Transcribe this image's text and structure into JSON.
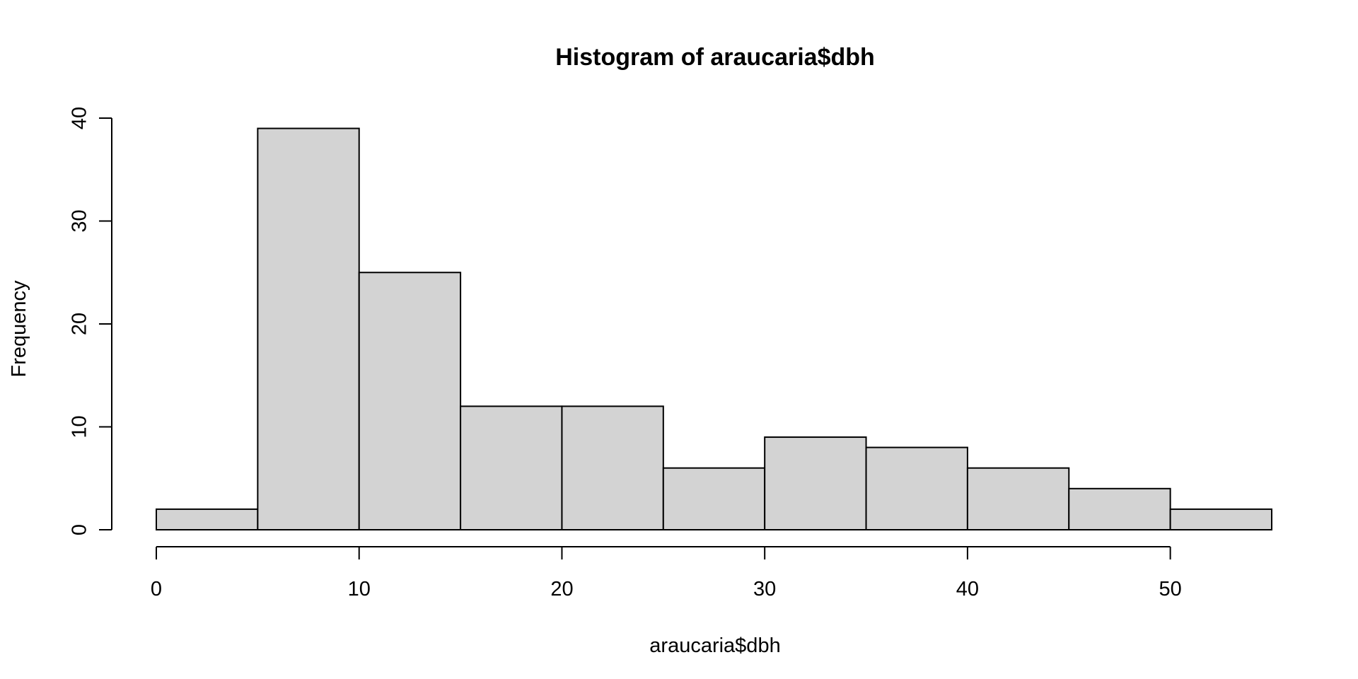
{
  "chart_data": {
    "type": "bar",
    "subtype": "histogram",
    "title": "Histogram of araucaria$dbh",
    "xlabel": "araucaria$dbh",
    "ylabel": "Frequency",
    "bins": [
      {
        "x0": 0,
        "x1": 5,
        "count": 2
      },
      {
        "x0": 5,
        "x1": 10,
        "count": 39
      },
      {
        "x0": 10,
        "x1": 15,
        "count": 25
      },
      {
        "x0": 15,
        "x1": 20,
        "count": 12
      },
      {
        "x0": 20,
        "x1": 25,
        "count": 12
      },
      {
        "x0": 25,
        "x1": 30,
        "count": 6
      },
      {
        "x0": 30,
        "x1": 35,
        "count": 9
      },
      {
        "x0": 35,
        "x1": 40,
        "count": 8
      },
      {
        "x0": 40,
        "x1": 45,
        "count": 6
      },
      {
        "x0": 45,
        "x1": 50,
        "count": 4
      },
      {
        "x0": 50,
        "x1": 55,
        "count": 2
      }
    ],
    "xlim": [
      0,
      55
    ],
    "ylim": [
      0,
      40
    ],
    "x_ticks": [
      "0",
      "10",
      "20",
      "30",
      "40",
      "50"
    ],
    "y_ticks": [
      "0",
      "10",
      "20",
      "30",
      "40"
    ],
    "grid": false,
    "legend": "none",
    "colors": {
      "bar_fill": "#d3d3d3",
      "bar_stroke": "#000000"
    }
  }
}
